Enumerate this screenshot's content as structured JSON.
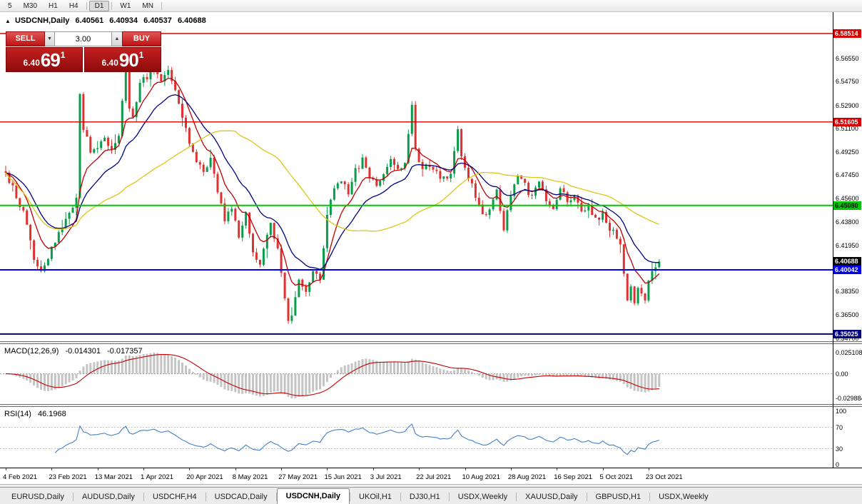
{
  "icons": {
    "triangle_up": "▲",
    "spinner_up": "▲",
    "spinner_down": "▼"
  },
  "toolbar": {
    "timeframes": [
      "5",
      "M30",
      "H1",
      "H4",
      "D1",
      "W1",
      "MN"
    ],
    "active": "D1"
  },
  "chart": {
    "info": {
      "symbol": "USDCNH,Daily",
      "open": "6.40561",
      "high": "6.40934",
      "low": "6.40537",
      "close": "6.40688"
    },
    "trade_panel": {
      "sell_label": "SELL",
      "buy_label": "BUY",
      "volume": "3.00",
      "bid": {
        "prefix": "6.40",
        "big": "69",
        "sup": "1"
      },
      "ask": {
        "prefix": "6.40",
        "big": "90",
        "sup": "1"
      }
    },
    "price_top": 6.6019,
    "price_bottom": 6.3446,
    "axis_labels": [
      "6.56550",
      "6.54750",
      "6.52900",
      "6.51100",
      "6.49250",
      "6.47450",
      "6.45600",
      "6.43800",
      "6.41950",
      "6.38350",
      "6.36500",
      "6.34700"
    ],
    "levels": [
      {
        "label": "6.58514",
        "price": 6.58514,
        "color": "#d40000",
        "fg": "#ffffff",
        "width": 1.4
      },
      {
        "label": "6.51605",
        "price": 6.51605,
        "color": "#d40000",
        "fg": "#ffffff",
        "width": 1.4
      },
      {
        "label": "6.45080",
        "price": 6.4508,
        "color": "#00c800",
        "fg": "#000000",
        "width": 2
      },
      {
        "label": "6.40042",
        "price": 6.40042,
        "color": "#0000e6",
        "fg": "#ffffff",
        "width": 2
      },
      {
        "label": "6.35025",
        "price": 6.35025,
        "color": "#000080",
        "fg": "#ffffff",
        "width": 2
      }
    ],
    "current_price": {
      "label": "6.40688",
      "price": 6.40688,
      "bg": "#000000",
      "fg": "#ffffff"
    },
    "candles": {
      "count": 186,
      "up_color": "#0a9c4a",
      "down_color": "#dd3232",
      "anchors": [
        [
          0,
          6.474
        ],
        [
          2,
          6.464
        ],
        [
          4,
          6.452
        ],
        [
          6,
          6.438
        ],
        [
          8,
          6.41
        ],
        [
          10,
          6.398
        ],
        [
          12,
          6.41
        ],
        [
          14,
          6.424
        ],
        [
          16,
          6.432
        ],
        [
          18,
          6.445
        ],
        [
          20,
          6.455
        ],
        [
          21,
          6.538
        ],
        [
          22,
          6.512
        ],
        [
          24,
          6.492
        ],
        [
          26,
          6.498
        ],
        [
          28,
          6.506
        ],
        [
          30,
          6.492
        ],
        [
          32,
          6.505
        ],
        [
          34,
          6.558
        ],
        [
          35,
          6.528
        ],
        [
          36,
          6.52
        ],
        [
          38,
          6.548
        ],
        [
          40,
          6.552
        ],
        [
          42,
          6.56
        ],
        [
          44,
          6.548
        ],
        [
          46,
          6.558
        ],
        [
          48,
          6.54
        ],
        [
          50,
          6.518
        ],
        [
          52,
          6.5
        ],
        [
          54,
          6.486
        ],
        [
          56,
          6.476
        ],
        [
          58,
          6.49
        ],
        [
          60,
          6.462
        ],
        [
          62,
          6.44
        ],
        [
          64,
          6.448
        ],
        [
          66,
          6.428
        ],
        [
          68,
          6.444
        ],
        [
          70,
          6.415
        ],
        [
          72,
          6.405
        ],
        [
          74,
          6.428
        ],
        [
          75,
          6.438
        ],
        [
          77,
          6.415
        ],
        [
          79,
          6.38
        ],
        [
          80,
          6.358
        ],
        [
          81,
          6.365
        ],
        [
          83,
          6.395
        ],
        [
          85,
          6.383
        ],
        [
          87,
          6.4
        ],
        [
          89,
          6.395
        ],
        [
          90,
          6.415
        ],
        [
          91,
          6.445
        ],
        [
          93,
          6.465
        ],
        [
          95,
          6.47
        ],
        [
          97,
          6.462
        ],
        [
          99,
          6.478
        ],
        [
          101,
          6.486
        ],
        [
          103,
          6.474
        ],
        [
          105,
          6.466
        ],
        [
          107,
          6.476
        ],
        [
          109,
          6.486
        ],
        [
          111,
          6.479
        ],
        [
          113,
          6.483
        ],
        [
          115,
          6.528
        ],
        [
          116,
          6.495
        ],
        [
          118,
          6.478
        ],
        [
          120,
          6.483
        ],
        [
          122,
          6.477
        ],
        [
          124,
          6.471
        ],
        [
          126,
          6.477
        ],
        [
          128,
          6.508
        ],
        [
          129,
          6.488
        ],
        [
          131,
          6.474
        ],
        [
          133,
          6.459
        ],
        [
          135,
          6.442
        ],
        [
          137,
          6.448
        ],
        [
          139,
          6.461
        ],
        [
          141,
          6.432
        ],
        [
          143,
          6.458
        ],
        [
          145,
          6.476
        ],
        [
          147,
          6.467
        ],
        [
          149,
          6.456
        ],
        [
          151,
          6.47
        ],
        [
          153,
          6.454
        ],
        [
          155,
          6.447
        ],
        [
          157,
          6.464
        ],
        [
          159,
          6.453
        ],
        [
          161,
          6.458
        ],
        [
          163,
          6.445
        ],
        [
          165,
          6.449
        ],
        [
          167,
          6.44
        ],
        [
          169,
          6.444
        ],
        [
          171,
          6.433
        ],
        [
          173,
          6.426
        ],
        [
          174,
          6.42
        ],
        [
          175,
          6.398
        ],
        [
          176,
          6.378
        ],
        [
          177,
          6.386
        ],
        [
          178,
          6.372
        ],
        [
          179,
          6.388
        ],
        [
          180,
          6.384
        ],
        [
          181,
          6.379
        ],
        [
          182,
          6.391
        ],
        [
          183,
          6.399
        ],
        [
          184,
          6.403
        ],
        [
          185,
          6.40688
        ]
      ]
    },
    "mas": [
      {
        "type": "ema",
        "period": 8,
        "color": "#c00000"
      },
      {
        "type": "ema",
        "period": 18,
        "color": "#000080"
      },
      {
        "type": "sma",
        "period": 45,
        "color": "#ddc61a"
      }
    ]
  },
  "macd": {
    "title": "MACD(12,26,9)",
    "value_main": "-0.014301",
    "value_signal": "-0.017357",
    "fast": 12,
    "slow": 26,
    "signal": 9,
    "axis": [
      "0.025108",
      "0.00",
      "-0.029884"
    ],
    "hist_color": "#c4c4c4",
    "signal_color": "#c00000"
  },
  "rsi": {
    "title": "RSI(14)",
    "value": "46.1968",
    "period": 14,
    "levels": [
      70,
      30
    ],
    "axis": [
      "100",
      "70",
      "30",
      "0"
    ],
    "color": "#4080c8"
  },
  "dates": [
    "4 Feb 2021",
    "23 Feb 2021",
    "13 Mar 2021",
    "1 Apr 2021",
    "20 Apr 2021",
    "8 May 2021",
    "27 May 2021",
    "15 Jun 2021",
    "3 Jul 2021",
    "22 Jul 2021",
    "10 Aug 2021",
    "28 Aug 2021",
    "16 Sep 2021",
    "5 Oct 2021",
    "23 Oct 2021"
  ],
  "tabs": {
    "active_index": 4,
    "items": [
      "EURUSD,Daily",
      "AUDUSD,Daily",
      "USDCHF,H4",
      "USDCAD,Daily",
      "USDCNH,Daily",
      "UKOil,H1",
      "DJ30,H1",
      "USDX,Weekly",
      "XAUUSD,Daily",
      "GBPUSD,H1",
      "USDX,Weekly"
    ]
  }
}
